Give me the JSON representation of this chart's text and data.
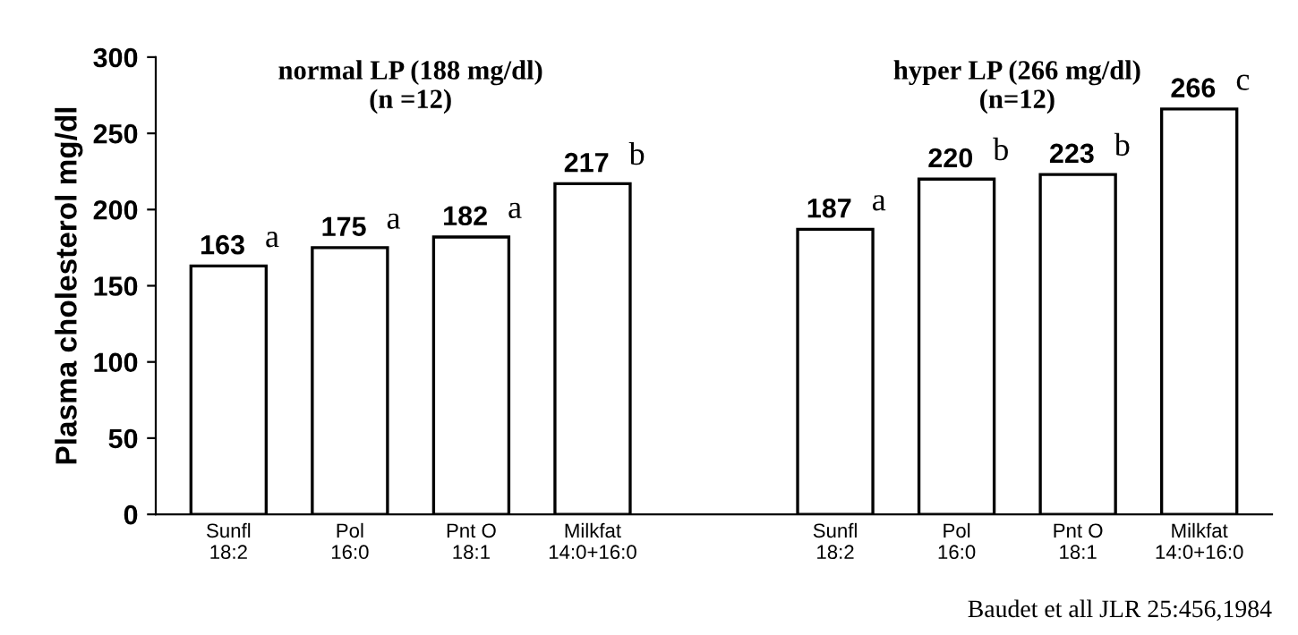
{
  "chart_data": {
    "type": "bar",
    "ylabel": "Plasma cholesterol mg/dl",
    "categories": [
      "Sunfl\n18:2",
      "Pol\n16:0",
      "Pnt O\n18:1",
      "Milkfat\n14:0+16:0",
      null,
      "Sunfl\n18:2",
      "Pol\n16:0",
      "Pnt O\n18:1",
      "Milkfat\n14:0+16:0"
    ],
    "values": [
      163,
      175,
      182,
      217,
      null,
      187,
      220,
      223,
      266
    ],
    "color": "#ffffff",
    "data_labels": true,
    "ylim": [
      0,
      300
    ],
    "yticks": [
      0,
      50,
      100,
      150,
      200,
      250,
      300
    ],
    "grid": false,
    "annotations": [
      "normal LP (188 mg/dl)\n(n =12)",
      "hyper LP (266 mg/dl)\n(n=12)",
      "a",
      "a",
      "a",
      "b",
      "a",
      "b",
      "b",
      "c",
      "Baudet et all JLR 25:456,1984"
    ]
  }
}
